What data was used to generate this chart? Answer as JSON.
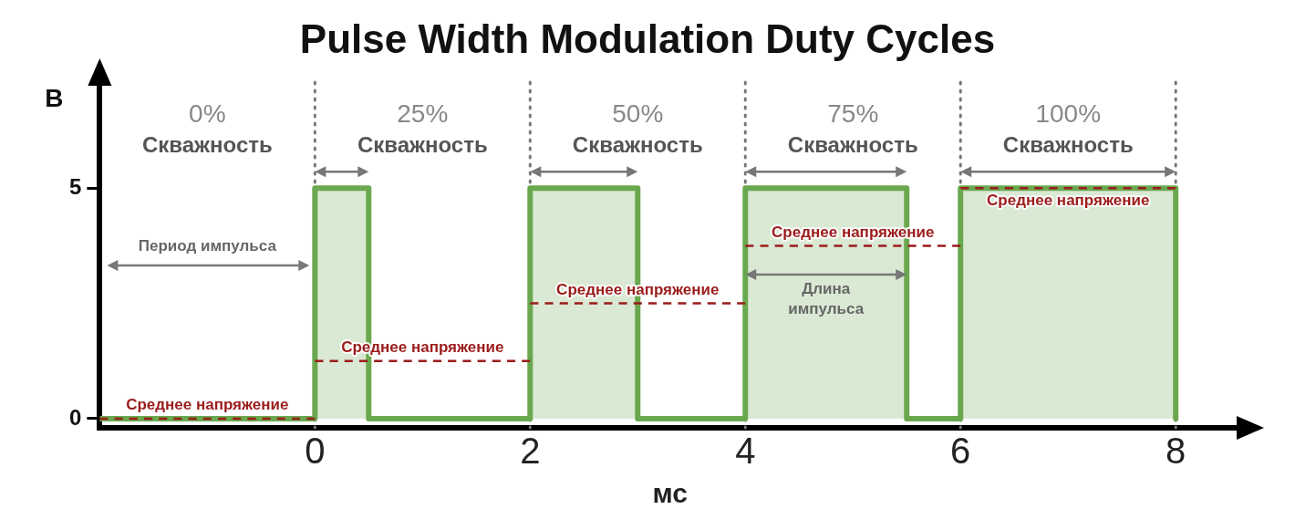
{
  "chart_data": {
    "type": "area",
    "title": "Pulse Width Modulation Duty Cycles",
    "xlabel": "мс",
    "ylabel": "В",
    "xlim": [
      -2,
      8.6
    ],
    "xticks": [
      0,
      2,
      4,
      6,
      8
    ],
    "ylim": [
      -0.2,
      7.3
    ],
    "yticks": [
      0,
      5
    ],
    "grid": false,
    "series": [
      {
        "type": "area",
        "color": "#6aa84f",
        "x": [
          -2,
          0,
          0,
          0.5,
          0.5,
          2,
          2,
          3,
          3,
          4,
          4,
          5.5,
          5.5,
          6,
          6,
          8,
          8
        ],
        "values": [
          0,
          0,
          5,
          5,
          0,
          0,
          5,
          5,
          0,
          0,
          5,
          5,
          0,
          0,
          5,
          5,
          0
        ]
      },
      {
        "type": "line",
        "name": "Среднее напряжение",
        "color": "#9b1b1b",
        "line_style": "dashed",
        "x": [
          -2,
          0
        ],
        "values": [
          0,
          0
        ]
      },
      {
        "type": "line",
        "name": "Среднее напряжение",
        "color": "#9b1b1b",
        "line_style": "dashed",
        "x": [
          0,
          2
        ],
        "values": [
          1.25,
          1.25
        ]
      },
      {
        "type": "line",
        "name": "Среднее напряжение",
        "color": "#9b1b1b",
        "line_style": "dashed",
        "x": [
          2,
          4
        ],
        "values": [
          2.5,
          2.5
        ]
      },
      {
        "type": "line",
        "name": "Среднее напряжение",
        "color": "#9b1b1b",
        "line_style": "dashed",
        "x": [
          4,
          6
        ],
        "values": [
          3.75,
          3.75
        ]
      },
      {
        "type": "line",
        "name": "Среднее напряжение",
        "color": "#9b1b1b",
        "line_style": "dashed",
        "x": [
          6,
          8
        ],
        "values": [
          5,
          5
        ]
      }
    ],
    "ref_lines": [
      {
        "axis": "x",
        "value": 0,
        "color": "#777777",
        "line_style": "dotted"
      },
      {
        "axis": "x",
        "value": 2,
        "color": "#777777",
        "line_style": "dotted"
      },
      {
        "axis": "x",
        "value": 4,
        "color": "#777777",
        "line_style": "dotted"
      },
      {
        "axis": "x",
        "value": 6,
        "color": "#777777",
        "line_style": "dotted"
      },
      {
        "axis": "x",
        "value": 8,
        "color": "#777777",
        "line_style": "dotted"
      }
    ],
    "annotations": [
      "0%\nСкважность",
      "25%\nСкважность",
      "50%\nСкважность",
      "75%\nСкважность",
      "100%\nСкважность",
      "Период импульса",
      "Длина\nимпульса"
    ]
  }
}
